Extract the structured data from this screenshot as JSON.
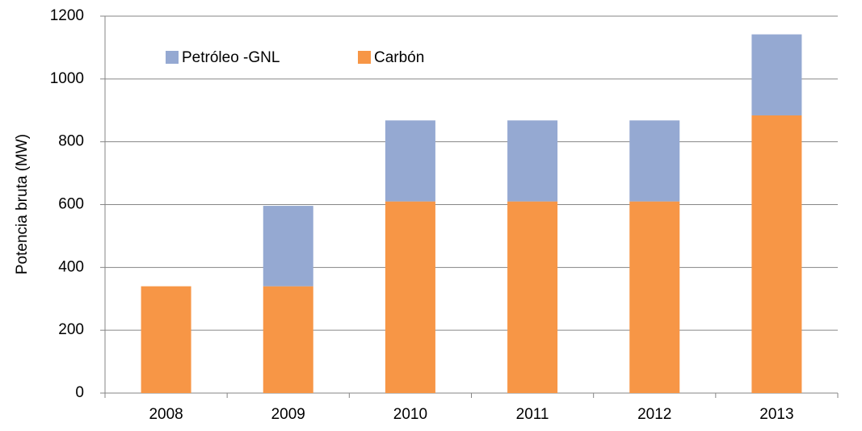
{
  "chart_data": {
    "type": "stacked_bar",
    "ylabel": "Potencia bruta (MW)",
    "categories": [
      "2008",
      "2009",
      "2010",
      "2011",
      "2012",
      "2013"
    ],
    "series": [
      {
        "name": "Petróleo -GNL",
        "color": "#95a9d2",
        "values": [
          0,
          256,
          258,
          258,
          258,
          258
        ]
      },
      {
        "name": "Carbón",
        "color": "#f79646",
        "values": [
          340,
          340,
          610,
          610,
          610,
          884
        ]
      }
    ],
    "ylim": [
      0,
      1200
    ],
    "yticks": [
      0,
      200,
      400,
      600,
      800,
      1000,
      1200
    ],
    "grid": true
  }
}
